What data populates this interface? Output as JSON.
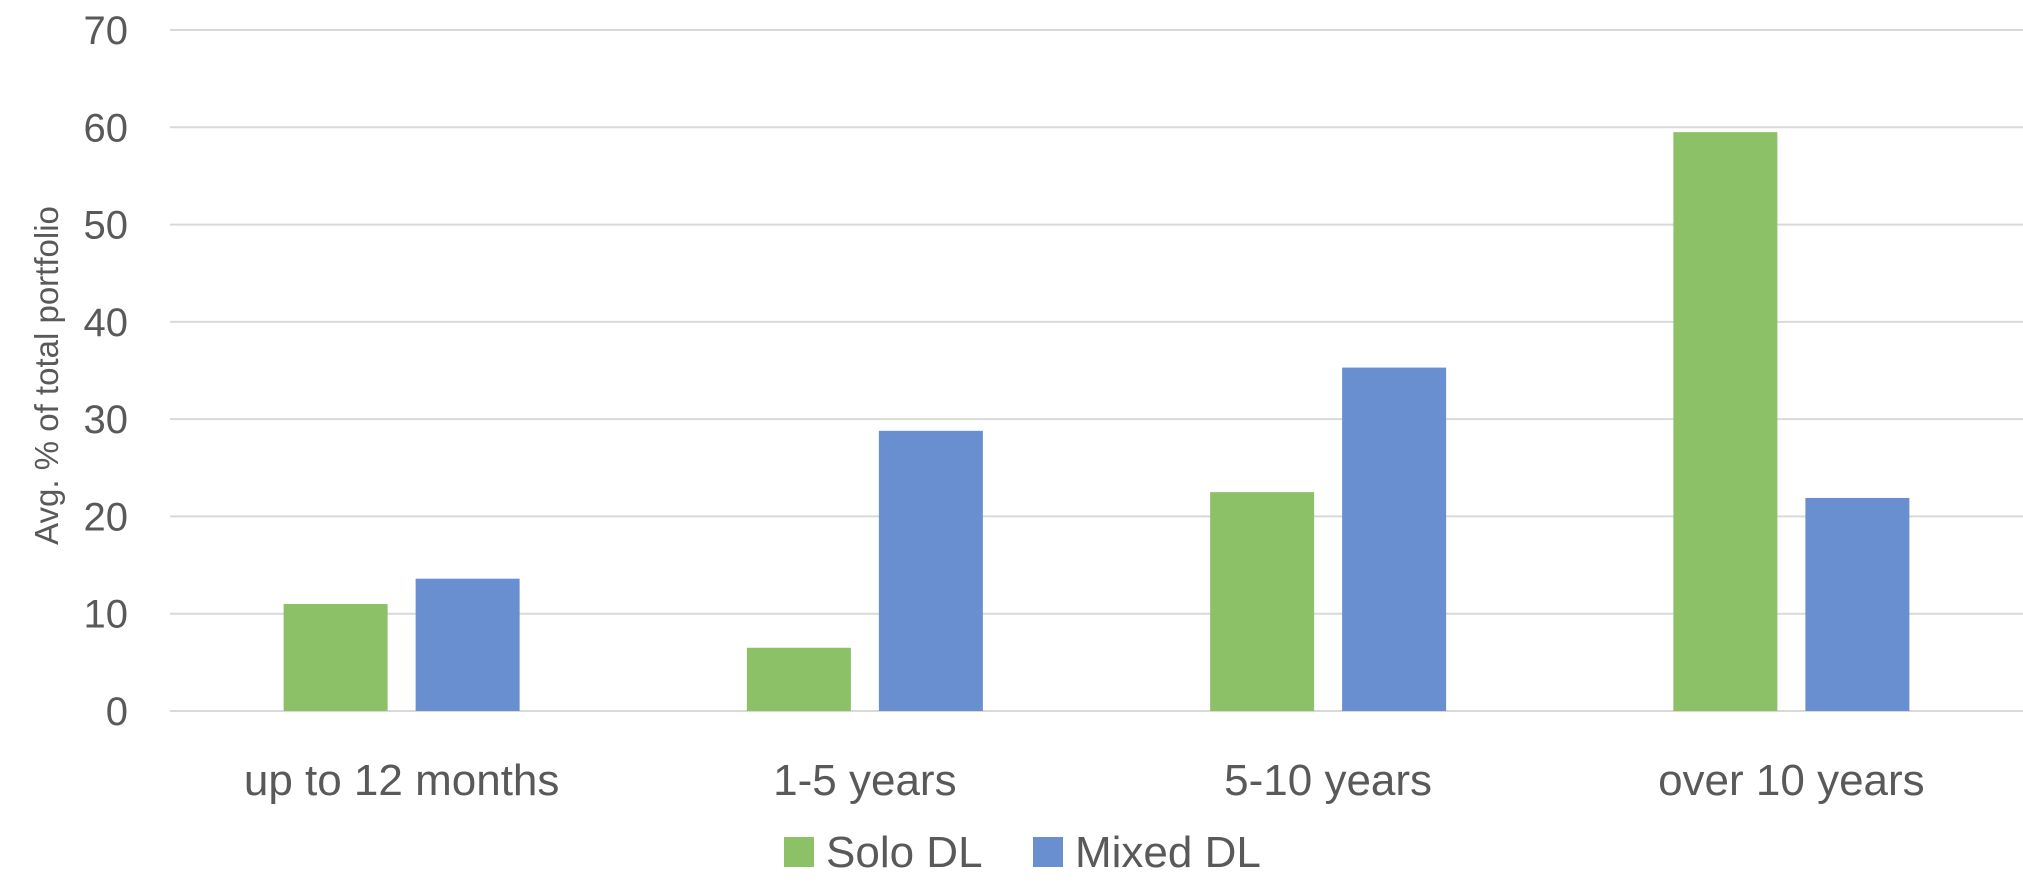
{
  "chart_data": {
    "type": "bar",
    "title": "",
    "xlabel": "",
    "ylabel": "Avg. % of total portfolio",
    "ylim": [
      0,
      70
    ],
    "yticks": [
      0,
      10,
      20,
      30,
      40,
      50,
      60,
      70
    ],
    "categories": [
      "up to 12 months",
      "1-5 years",
      "5-10 years",
      "over 10 years"
    ],
    "grid": true,
    "legend_position": "bottom",
    "series": [
      {
        "name": "Solo DL",
        "color": "#8dc167",
        "values": [
          11,
          6.5,
          22.5,
          59.5
        ]
      },
      {
        "name": "Mixed DL",
        "color": "#6a8fd0",
        "values": [
          13.6,
          28.8,
          35.3,
          21.9
        ]
      }
    ]
  }
}
